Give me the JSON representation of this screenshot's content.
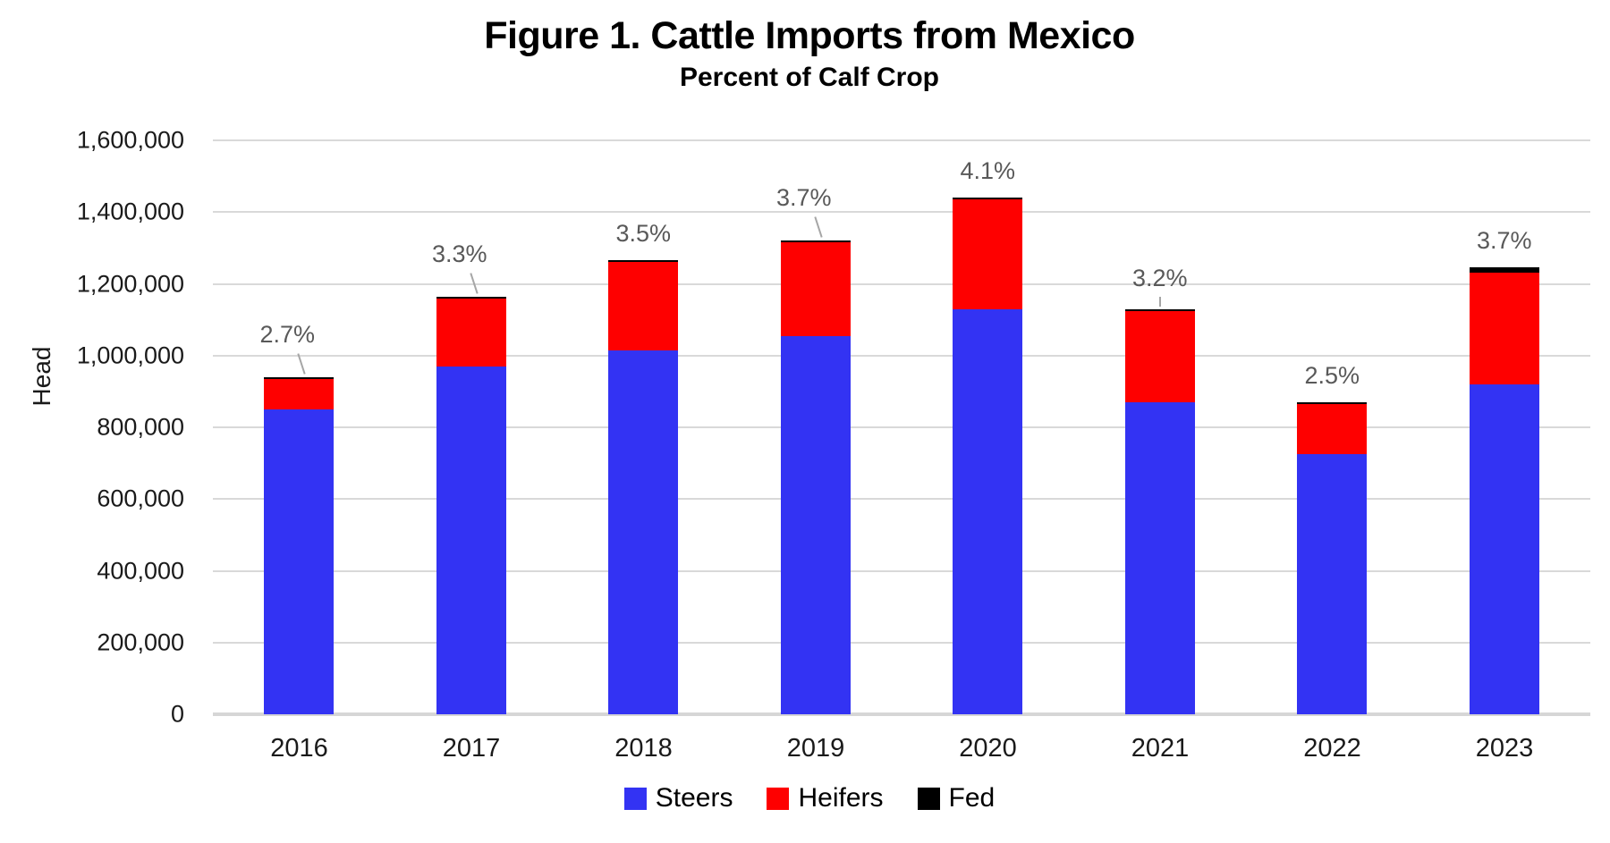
{
  "figure": {
    "title": "Figure 1. Cattle Imports from Mexico",
    "subtitle": "Percent of Calf Crop"
  },
  "chart_data": {
    "type": "bar",
    "stacked": true,
    "title": "Figure 1. Cattle Imports from Mexico",
    "subtitle": "Percent of Calf Crop",
    "xlabel": "",
    "ylabel": "Head",
    "ylim": [
      0,
      1600000
    ],
    "ytick_interval": 200000,
    "grid": "horizontal",
    "legend_position": "bottom",
    "yticks": [
      {
        "value": 0,
        "label": "0"
      },
      {
        "value": 200000,
        "label": "200,000"
      },
      {
        "value": 400000,
        "label": "400,000"
      },
      {
        "value": 600000,
        "label": "600,000"
      },
      {
        "value": 800000,
        "label": "800,000"
      },
      {
        "value": 1000000,
        "label": "1,000,000"
      },
      {
        "value": 1200000,
        "label": "1,200,000"
      },
      {
        "value": 1400000,
        "label": "1,400,000"
      },
      {
        "value": 1600000,
        "label": "1,600,000"
      }
    ],
    "categories": [
      "2016",
      "2017",
      "2018",
      "2019",
      "2020",
      "2021",
      "2022",
      "2023"
    ],
    "series": [
      {
        "name": "Steers",
        "color": "#3333f3",
        "values": [
          850000,
          970000,
          1015000,
          1055000,
          1130000,
          870000,
          725000,
          920000
        ]
      },
      {
        "name": "Heifers",
        "color": "#fe0000",
        "values": [
          85000,
          190000,
          245000,
          260000,
          305000,
          255000,
          140000,
          310000
        ]
      },
      {
        "name": "Fed",
        "color": "#000000",
        "values": [
          5000,
          5000,
          5000,
          5000,
          5000,
          5000,
          5000,
          15000
        ]
      }
    ],
    "totals": [
      940000,
      1165000,
      1265000,
      1320000,
      1440000,
      1130000,
      870000,
      1245000
    ],
    "bar_labels": {
      "description": "Percent of calf crop shown above each bar",
      "color": "#595959",
      "values": [
        "2.7%",
        "3.3%",
        "3.5%",
        "3.7%",
        "4.1%",
        "3.2%",
        "2.5%",
        "3.7%"
      ],
      "leaders": [
        "diagonal",
        "diagonal",
        "none",
        "diagonal",
        "none",
        "vertical",
        "none",
        "none"
      ]
    },
    "colors": {
      "gridline": "#d9d9d9",
      "axis_line": "#d6d6d6",
      "axis_text": "#1a1a1a",
      "data_label": "#595959"
    }
  }
}
